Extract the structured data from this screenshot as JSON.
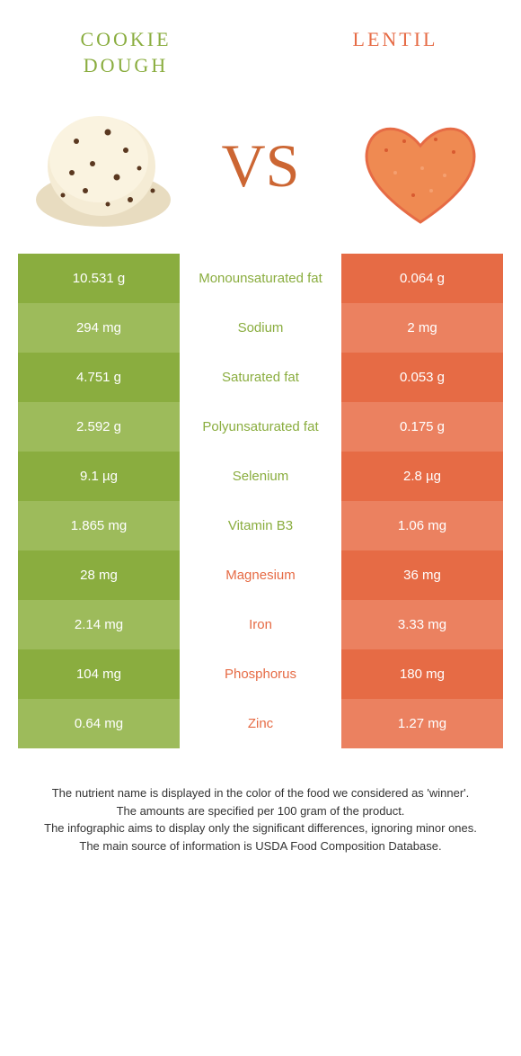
{
  "header": {
    "left_title": "COOKIE DOUGH",
    "right_title": "LENTIL",
    "vs": "VS"
  },
  "colors": {
    "left": "#8aad3f",
    "left_alt": "#9dbb5b",
    "right": "#e66b45",
    "right_alt": "#eb8160",
    "orange_dark": "#e66b45",
    "orange_light": "#f08a5a"
  },
  "rows": [
    {
      "left": "10.531 g",
      "label": "Monounsaturated fat",
      "right": "0.064 g",
      "winner": "left"
    },
    {
      "left": "294 mg",
      "label": "Sodium",
      "right": "2 mg",
      "winner": "left"
    },
    {
      "left": "4.751 g",
      "label": "Saturated fat",
      "right": "0.053 g",
      "winner": "left"
    },
    {
      "left": "2.592 g",
      "label": "Polyunsaturated fat",
      "right": "0.175 g",
      "winner": "left"
    },
    {
      "left": "9.1 µg",
      "label": "Selenium",
      "right": "2.8 µg",
      "winner": "left"
    },
    {
      "left": "1.865 mg",
      "label": "Vitamin B3",
      "right": "1.06 mg",
      "winner": "left"
    },
    {
      "left": "28 mg",
      "label": "Magnesium",
      "right": "36 mg",
      "winner": "right"
    },
    {
      "left": "2.14 mg",
      "label": "Iron",
      "right": "3.33 mg",
      "winner": "right"
    },
    {
      "left": "104 mg",
      "label": "Phosphorus",
      "right": "180 mg",
      "winner": "right"
    },
    {
      "left": "0.64 mg",
      "label": "Zinc",
      "right": "1.27 mg",
      "winner": "right"
    }
  ],
  "footer": {
    "line1": "The nutrient name is displayed in the color of the food we considered as 'winner'.",
    "line2": "The amounts are specified per 100 gram of the product.",
    "line3": "The infographic aims to display only the significant differences, ignoring minor ones.",
    "line4": "The main source of information is USDA Food Composition Database."
  }
}
